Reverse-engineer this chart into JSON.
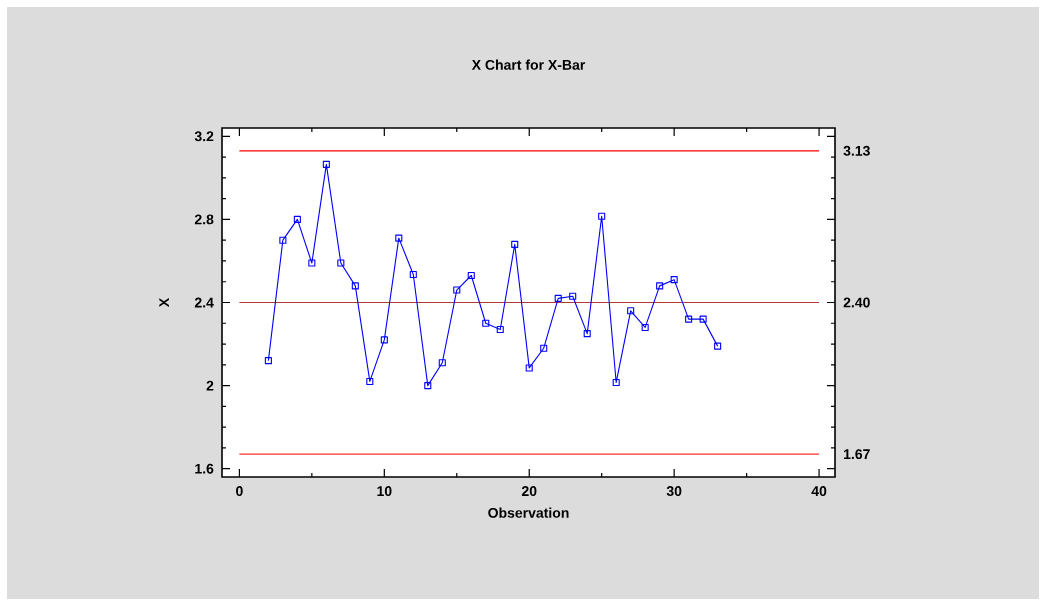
{
  "chart_data": {
    "type": "line",
    "title": "X Chart for X-Bar",
    "xlabel": "Observation",
    "ylabel": "X",
    "x": [
      2,
      3,
      4,
      5,
      6,
      7,
      8,
      9,
      10,
      11,
      12,
      13,
      14,
      15,
      16,
      17,
      18,
      19,
      20,
      21,
      22,
      23,
      24,
      25,
      26,
      27,
      28,
      29,
      30,
      31,
      32,
      33
    ],
    "series": [
      {
        "color": "#0000ff",
        "values": [
          2.12,
          2.7,
          2.8,
          2.59,
          3.065,
          2.59,
          2.48,
          2.02,
          2.22,
          2.71,
          2.535,
          2.0,
          2.11,
          2.46,
          2.53,
          2.3,
          2.27,
          2.68,
          2.085,
          2.18,
          2.42,
          2.43,
          2.25,
          2.815,
          2.015,
          2.36,
          2.28,
          2.48,
          2.51,
          2.32,
          2.32,
          2.19
        ]
      }
    ],
    "xlim": [
      -1.2,
      41.1
    ],
    "ylim": [
      1.56,
      3.24
    ],
    "xticks": [
      0,
      10,
      20,
      30,
      40
    ],
    "yticks": [
      1.6,
      2,
      2.4,
      2.8,
      3.2
    ],
    "ref_lines": [
      {
        "axis": "y",
        "value": 3.13,
        "label": "3.13",
        "color": "#ff0000"
      },
      {
        "axis": "y",
        "value": 2.4,
        "label": "2.40",
        "color": "#b03a3a"
      },
      {
        "axis": "y",
        "value": 1.67,
        "label": "1.67",
        "color": "#ff3030"
      }
    ],
    "marker": "square",
    "line_style": "solid",
    "grid": false
  }
}
